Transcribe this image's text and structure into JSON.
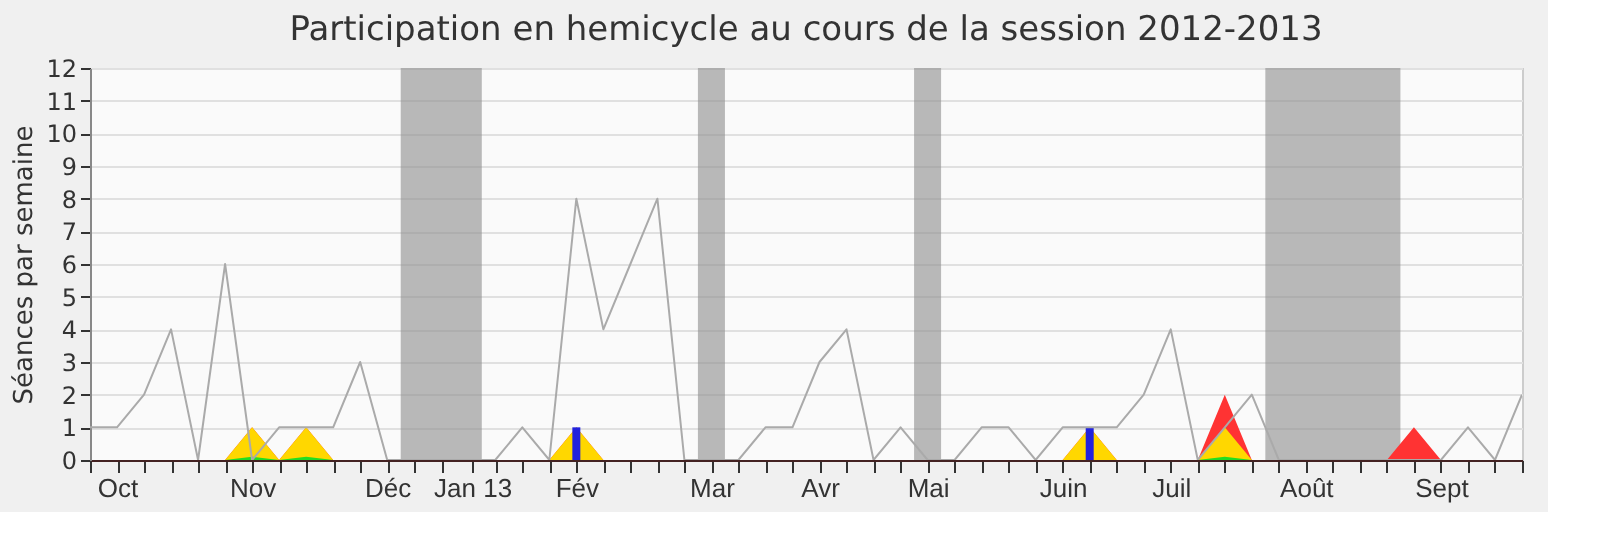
{
  "chart_data": {
    "type": "line",
    "title": "Participation en hemicycle au cours de la session 2012-2013",
    "ylabel": "Séances par semaine",
    "x": [
      "2012-09-24",
      "2012-10-01",
      "2012-10-08",
      "2012-10-15",
      "2012-10-22",
      "2012-10-29",
      "2012-11-05",
      "2012-11-12",
      "2012-11-19",
      "2012-11-26",
      "2012-12-03",
      "2012-12-10",
      "2012-12-17",
      "2012-12-24",
      "2012-12-31",
      "2013-01-07",
      "2013-01-14",
      "2013-01-21",
      "2013-01-28",
      "2013-02-04",
      "2013-02-11",
      "2013-02-18",
      "2013-02-25",
      "2013-03-04",
      "2013-03-11",
      "2013-03-18",
      "2013-03-25",
      "2013-04-01",
      "2013-04-08",
      "2013-04-15",
      "2013-04-22",
      "2013-04-29",
      "2013-05-06",
      "2013-05-13",
      "2013-05-20",
      "2013-05-27",
      "2013-06-03",
      "2013-06-10",
      "2013-06-17",
      "2013-06-24",
      "2013-07-01",
      "2013-07-08",
      "2013-07-15",
      "2013-07-22",
      "2013-07-29",
      "2013-08-05",
      "2013-08-12",
      "2013-08-19",
      "2013-08-26",
      "2013-09-02",
      "2013-09-09",
      "2013-09-16",
      "2013-09-23",
      "2013-09-30"
    ],
    "series": [
      {
        "color": "#aaaaaa",
        "values": [
          1,
          1,
          2,
          4,
          0,
          6,
          0,
          1,
          1,
          1,
          3,
          0,
          0,
          0,
          0,
          0,
          1,
          0,
          8,
          4,
          6,
          8,
          0,
          0,
          0,
          1,
          1,
          3,
          4,
          0,
          1,
          0,
          0,
          1,
          1,
          0,
          1,
          1,
          1,
          2,
          4,
          0,
          1,
          2,
          0,
          0,
          0,
          0,
          0,
          0,
          0,
          1,
          0,
          2
        ]
      },
      {
        "type": "area",
        "color": "#ff3333",
        "values": [
          0,
          0,
          0,
          0,
          0,
          0,
          1,
          0,
          1,
          0,
          0,
          0,
          0,
          0,
          0,
          0,
          0,
          0,
          1,
          0,
          0,
          0,
          0,
          0,
          0,
          0,
          0,
          0,
          0,
          0,
          0,
          0,
          0,
          0,
          0,
          0,
          0,
          1,
          0,
          0,
          0,
          0,
          2,
          0,
          0,
          0,
          0,
          0,
          0,
          1,
          0,
          0,
          0,
          0
        ]
      },
      {
        "type": "area",
        "color": "#ffd700",
        "values": [
          0,
          0,
          0,
          0,
          0,
          0,
          1,
          0,
          1,
          0,
          0,
          0,
          0,
          0,
          0,
          0,
          0,
          0,
          1,
          0,
          0,
          0,
          0,
          0,
          0,
          0,
          0,
          0,
          0,
          0,
          0,
          0,
          0,
          0,
          0,
          0,
          0,
          1,
          0,
          0,
          0,
          0,
          1,
          0,
          0,
          0,
          0,
          0,
          0,
          0,
          0,
          0,
          0,
          0
        ]
      },
      {
        "type": "area",
        "color": "#22dd22",
        "values": [
          0,
          0,
          0,
          0,
          0,
          0,
          0.1,
          0,
          0.1,
          0,
          0,
          0,
          0,
          0,
          0,
          0,
          0,
          0,
          0,
          0,
          0,
          0,
          0,
          0,
          0,
          0,
          0,
          0,
          0,
          0,
          0,
          0,
          0,
          0,
          0,
          0,
          0,
          0,
          0,
          0,
          0,
          0,
          0.1,
          0,
          0,
          0,
          0,
          0,
          0,
          0,
          0,
          0,
          0,
          0
        ]
      },
      {
        "type": "bar",
        "color": "#2222dd",
        "x": [
          "2013-01-28",
          "2013-06-10"
        ],
        "values": [
          1,
          1
        ]
      }
    ],
    "bands": [
      {
        "axis": "x",
        "from": "2012-12-13T12:00",
        "to": "2013-01-03T12:00",
        "color": "#8c8c8c"
      },
      {
        "axis": "x",
        "from": "2013-02-28T12:00",
        "to": "2013-03-07T12:00",
        "color": "#8c8c8c"
      },
      {
        "axis": "x",
        "from": "2013-04-25T12:00",
        "to": "2013-05-02T12:00",
        "color": "#8c8c8c"
      },
      {
        "axis": "x",
        "from": "2013-07-25T12:00",
        "to": "2013-08-29T12:00",
        "color": "#8c8c8c"
      }
    ],
    "xlim": [
      "2012-09-24",
      "2013-09-30"
    ],
    "xticks": [
      {
        "value": "2012-09-24",
        "label": null
      },
      {
        "value": "2012-10-01",
        "label": "Oct"
      },
      {
        "value": "2012-10-08",
        "label": null
      },
      {
        "value": "2012-10-15",
        "label": null
      },
      {
        "value": "2012-10-22",
        "label": null
      },
      {
        "value": "2012-10-29",
        "label": null
      },
      {
        "value": "2012-11-05",
        "label": "Nov"
      },
      {
        "value": "2012-11-12",
        "label": null
      },
      {
        "value": "2012-11-19",
        "label": null
      },
      {
        "value": "2012-11-26",
        "label": null
      },
      {
        "value": "2012-12-03",
        "label": null
      },
      {
        "value": "2012-12-10",
        "label": "Déc"
      },
      {
        "value": "2012-12-17",
        "label": null
      },
      {
        "value": "2012-12-24",
        "label": null
      },
      {
        "value": "2013-01-01",
        "label": "Jan 13"
      },
      {
        "value": "2013-01-07",
        "label": null
      },
      {
        "value": "2013-01-14",
        "label": null
      },
      {
        "value": "2013-01-21",
        "label": null
      },
      {
        "value": "2013-01-28",
        "label": "Fév"
      },
      {
        "value": "2013-02-04",
        "label": null
      },
      {
        "value": "2013-02-11",
        "label": null
      },
      {
        "value": "2013-02-18",
        "label": null
      },
      {
        "value": "2013-02-25",
        "label": null
      },
      {
        "value": "2013-03-04",
        "label": "Mar"
      },
      {
        "value": "2013-03-11",
        "label": null
      },
      {
        "value": "2013-03-18",
        "label": null
      },
      {
        "value": "2013-03-25",
        "label": null
      },
      {
        "value": "2013-04-01",
        "label": "Avr"
      },
      {
        "value": "2013-04-08",
        "label": null
      },
      {
        "value": "2013-04-15",
        "label": null
      },
      {
        "value": "2013-04-22",
        "label": null
      },
      {
        "value": "2013-04-29",
        "label": "Mai"
      },
      {
        "value": "2013-05-06",
        "label": null
      },
      {
        "value": "2013-05-13",
        "label": null
      },
      {
        "value": "2013-05-20",
        "label": null
      },
      {
        "value": "2013-05-27",
        "label": null
      },
      {
        "value": "2013-06-03",
        "label": "Juin"
      },
      {
        "value": "2013-06-10",
        "label": null
      },
      {
        "value": "2013-06-17",
        "label": null
      },
      {
        "value": "2013-06-24",
        "label": null
      },
      {
        "value": "2013-07-01",
        "label": "Juil"
      },
      {
        "value": "2013-07-08",
        "label": null
      },
      {
        "value": "2013-07-15",
        "label": null
      },
      {
        "value": "2013-07-22",
        "label": null
      },
      {
        "value": "2013-07-29",
        "label": null
      },
      {
        "value": "2013-08-05",
        "label": "Août"
      },
      {
        "value": "2013-08-12",
        "label": null
      },
      {
        "value": "2013-08-19",
        "label": null
      },
      {
        "value": "2013-08-26",
        "label": null
      },
      {
        "value": "2013-09-02",
        "label": null
      },
      {
        "value": "2013-09-09",
        "label": "Sept"
      },
      {
        "value": "2013-09-16",
        "label": null
      },
      {
        "value": "2013-09-23",
        "label": null
      },
      {
        "value": "2013-09-30",
        "label": null
      }
    ],
    "ylim": [
      0,
      12
    ],
    "yticks": [
      0,
      1,
      2,
      3,
      4,
      5,
      6,
      7,
      8,
      9,
      10,
      11,
      12
    ],
    "grid": "y"
  }
}
